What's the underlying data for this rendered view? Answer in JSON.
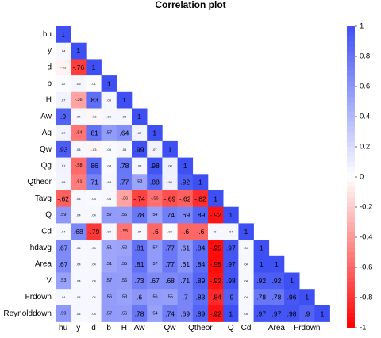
{
  "chart_data": {
    "type": "heatmap",
    "title": "Correlation plot",
    "variables": [
      "hu",
      "y",
      "d",
      "b",
      "H",
      "Aw",
      "Ag",
      "Qw",
      "Qg",
      "Qtheor",
      "Tavg",
      "Q",
      "Cd",
      "hdavg",
      "Area",
      "V",
      "Frdown",
      "Reynolddown"
    ],
    "x_tick_labels": [
      "hu",
      "y",
      "d",
      "b",
      "H",
      "Aw",
      "",
      "Qw",
      "",
      "Qtheor",
      "",
      "Q",
      "Cd",
      "",
      "Area",
      "",
      "Frdown",
      ""
    ],
    "matrix": [
      [
        1
      ],
      [
        0.04,
        1
      ],
      [
        -0.05,
        -0.76,
        1
      ],
      [
        0.02,
        0.05,
        0.01,
        1
      ],
      [
        0.07,
        -0.36,
        0.83,
        0.05,
        1
      ],
      [
        0.9,
        0.04,
        -0.03,
        0.05,
        0.05,
        1
      ],
      [
        0.07,
        -0.54,
        0.81,
        0.57,
        0.64,
        0.07,
        1
      ],
      [
        0.93,
        0.04,
        -0.03,
        0.03,
        0.05,
        0.99,
        0.07,
        1
      ],
      [
        0.07,
        -0.58,
        0.86,
        0.03,
        0.78,
        0.05,
        0.98,
        0.08,
        1
      ],
      [
        0.06,
        -0.51,
        0.71,
        0.04,
        0.77,
        0.52,
        0.88,
        0.08,
        0.92,
        1
      ],
      [
        -0.62,
        0.04,
        0.03,
        0.04,
        -0.36,
        -0.74,
        -0.56,
        -0.69,
        -0.62,
        -0.82,
        1
      ],
      [
        0.59,
        0.04,
        0.04,
        0.57,
        0.56,
        0.78,
        0.54,
        0.74,
        0.69,
        0.89,
        -0.92,
        1
      ],
      [
        0.04,
        0.68,
        -0.79,
        0.04,
        -0.55,
        0.04,
        -0.6,
        0.03,
        -0.6,
        -0.6,
        0.04,
        0.04,
        1
      ],
      [
        0.67,
        0.04,
        0.04,
        0.51,
        0.52,
        0.81,
        0.57,
        0.77,
        0.61,
        0.84,
        -0.95,
        0.97,
        0.04,
        1
      ],
      [
        0.67,
        0.04,
        0.04,
        0.51,
        0.55,
        0.81,
        0.57,
        0.77,
        0.61,
        0.84,
        -0.95,
        0.97,
        0.04,
        1,
        1
      ],
      [
        0.53,
        0.04,
        0.04,
        0.57,
        0.56,
        0.73,
        0.67,
        0.68,
        0.71,
        0.89,
        -0.92,
        0.98,
        0.04,
        0.92,
        0.92,
        1
      ],
      [
        0.04,
        0.04,
        0.04,
        0.56,
        0.53,
        0.6,
        0.56,
        0.55,
        0.7,
        0.83,
        -0.84,
        0.9,
        0.04,
        0.78,
        0.78,
        0.96,
        1
      ],
      [
        0.59,
        0.04,
        0.04,
        0.57,
        0.56,
        0.78,
        0.54,
        0.74,
        0.69,
        0.89,
        -0.92,
        1,
        0.04,
        0.97,
        0.97,
        0.98,
        0.9,
        1
      ]
    ],
    "colorbar": {
      "range": [
        -1,
        1
      ],
      "ticks": [
        "1",
        "0.8",
        "0.6",
        "0.4",
        "0.2",
        "0",
        "-0.2",
        "-0.4",
        "-0.6",
        "-0.8",
        "-1"
      ],
      "colors": {
        "negative": "#FF0000",
        "zero": "#FFFFFF",
        "positive": "#3E50F4"
      }
    },
    "grid": false,
    "legend": "right"
  }
}
